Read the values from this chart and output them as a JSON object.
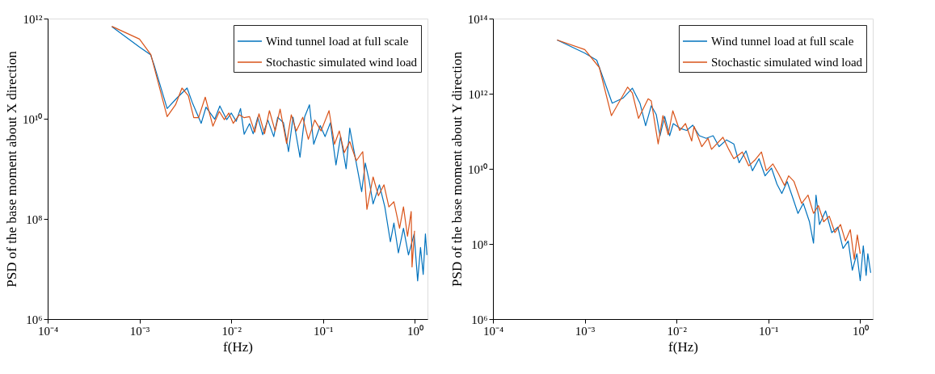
{
  "chart_data": [
    {
      "type": "line",
      "xlabel": "f(Hz)",
      "ylabel": "PSD of the base moment about X direction",
      "log": "xy",
      "legend": "top right",
      "xlim": [
        0.0001,
        1.37
      ],
      "ylim": [
        1000000.0,
        1000000000000.0
      ],
      "xticks": [
        {
          "value": 0.0001,
          "label": "10⁻⁴"
        },
        {
          "value": 0.001,
          "label": "10⁻³"
        },
        {
          "value": 0.01,
          "label": "10⁻²"
        },
        {
          "value": 0.1,
          "label": "10⁻¹"
        },
        {
          "value": 1,
          "label": "10⁰"
        }
      ],
      "yticks": [
        {
          "value": 1000000.0,
          "label": "10⁶"
        },
        {
          "value": 100000000.0,
          "label": "10⁸"
        },
        {
          "value": 10000000000.0,
          "label": "10¹⁰"
        },
        {
          "value": 1000000000000.0,
          "label": "10¹²"
        }
      ],
      "series": [
        {
          "name": "Wind tunnel load at full scale",
          "color": "#0072bd",
          "x": [
            0.0005,
            0.001,
            0.00132,
            0.00144,
            0.002,
            0.00256,
            0.0033,
            0.0038,
            0.0047,
            0.0053,
            0.0066,
            0.0075,
            0.0089,
            0.01,
            0.0113,
            0.0126,
            0.0138,
            0.0158,
            0.0173,
            0.0194,
            0.022,
            0.025,
            0.029,
            0.032,
            0.037,
            0.042,
            0.047,
            0.056,
            0.063,
            0.071,
            0.079,
            0.093,
            0.105,
            0.12,
            0.138,
            0.155,
            0.178,
            0.195,
            0.224,
            0.263,
            0.288,
            0.316,
            0.35,
            0.41,
            0.47,
            0.54,
            0.59,
            0.66,
            0.75,
            0.85,
            0.98,
            1.07,
            1.15,
            1.23,
            1.3,
            1.35
          ],
          "values": [
            690000000000.0,
            270000000000.0,
            190000000000.0,
            120000000000.0,
            16000000000.0,
            26000000000.0,
            41000000000.0,
            20000000000.0,
            8100000000.0,
            17000000000.0,
            9800000000.0,
            18000000000.0,
            9600000000.0,
            13000000000.0,
            8900000000.0,
            16000000000.0,
            4900000000.0,
            8000000000.0,
            5000000000.0,
            10700000000.0,
            4800000000.0,
            9400000000.0,
            4400000000.0,
            10700000000.0,
            8300000000.0,
            2200000000.0,
            10700000000.0,
            1700000000.0,
            11000000000.0,
            19000000000.0,
            3100000000.0,
            7300000000.0,
            4400000000.0,
            8300000000.0,
            1200000000.0,
            4400000000.0,
            1000000000.0,
            6500000000.0,
            1660000000.0,
            350000000.0,
            1300000000.0,
            600000000.0,
            200000000.0,
            480000000.0,
            174000000.0,
            35000000.0,
            83000000.0,
            21000000.0,
            65000000.0,
            19000000.0,
            50000000.0,
            5800000.0,
            27000000.0,
            7800000.0,
            50000000.0,
            19000000.0
          ]
        },
        {
          "name": "Stochastic simulated wind load",
          "color": "#d95319",
          "x": [
            0.0005,
            0.001,
            0.00133,
            0.002,
            0.00247,
            0.0029,
            0.0034,
            0.0039,
            0.0044,
            0.0052,
            0.0063,
            0.0074,
            0.0084,
            0.0094,
            0.0105,
            0.0122,
            0.0138,
            0.0158,
            0.018,
            0.02,
            0.023,
            0.026,
            0.03,
            0.034,
            0.04,
            0.045,
            0.051,
            0.06,
            0.069,
            0.081,
            0.095,
            0.116,
            0.133,
            0.15,
            0.17,
            0.195,
            0.23,
            0.27,
            0.3,
            0.35,
            0.4,
            0.46,
            0.52,
            0.59,
            0.68,
            0.75,
            0.83,
            0.91,
            0.93,
            0.99
          ],
          "values": [
            700000000000.0,
            390000000000.0,
            190000000000.0,
            11000000000.0,
            19000000000.0,
            41000000000.0,
            29000000000.0,
            10500000000.0,
            10500000000.0,
            27000000000.0,
            7100000000.0,
            14000000000.0,
            9600000000.0,
            13000000000.0,
            8100000000.0,
            12000000000.0,
            10500000000.0,
            11000000000.0,
            5400000000.0,
            12600000000.0,
            5000000000.0,
            14500000000.0,
            5700000000.0,
            15500000000.0,
            3200000000.0,
            12000000000.0,
            5700000000.0,
            10700000000.0,
            3900000000.0,
            9400000000.0,
            5700000000.0,
            14500000000.0,
            3100000000.0,
            5700000000.0,
            2100000000.0,
            3500000000.0,
            1450000000.0,
            2200000000.0,
            155000000.0,
            690000000.0,
            290000000.0,
            480000000.0,
            174000000.0,
            220000000.0,
            65000000.0,
            174000000.0,
            45000000.0,
            140000000.0,
            11000000.0,
            58000000.0
          ]
        }
      ]
    },
    {
      "type": "line",
      "xlabel": "f(Hz)",
      "ylabel": "PSD of the base moment about Y direction",
      "log": "xy",
      "legend": "top right",
      "xlim": [
        0.0001,
        1.37
      ],
      "ylim": [
        1000000.0,
        100000000000000.0
      ],
      "xticks": [
        {
          "value": 0.0001,
          "label": "10⁻⁴"
        },
        {
          "value": 0.001,
          "label": "10⁻³"
        },
        {
          "value": 0.01,
          "label": "10⁻²"
        },
        {
          "value": 0.1,
          "label": "10⁻¹"
        },
        {
          "value": 1,
          "label": "10⁰"
        }
      ],
      "yticks": [
        {
          "value": 1000000.0,
          "label": "10⁶"
        },
        {
          "value": 100000000.0,
          "label": "10⁸"
        },
        {
          "value": 10000000000.0,
          "label": "10¹⁰"
        },
        {
          "value": 1000000000000.0,
          "label": "10¹²"
        },
        {
          "value": 100000000000000.0,
          "label": "10¹⁴"
        }
      ],
      "series": [
        {
          "name": "Wind tunnel load at full scale",
          "color": "#0072bd",
          "x": [
            0.0005,
            0.001,
            0.00135,
            0.00146,
            0.00199,
            0.0026,
            0.0033,
            0.004,
            0.0046,
            0.0053,
            0.006,
            0.0066,
            0.0074,
            0.0084,
            0.0092,
            0.0109,
            0.0129,
            0.015,
            0.0177,
            0.021,
            0.025,
            0.029,
            0.035,
            0.042,
            0.048,
            0.057,
            0.067,
            0.079,
            0.092,
            0.108,
            0.124,
            0.14,
            0.16,
            0.18,
            0.21,
            0.24,
            0.28,
            0.31,
            0.33,
            0.36,
            0.42,
            0.49,
            0.57,
            0.65,
            0.74,
            0.82,
            0.92,
            1.0,
            1.08,
            1.16,
            1.21,
            1.3
          ],
          "values": [
            27000000000000.0,
            12000000000000.0,
            7800000000000.0,
            4600000000000.0,
            560000000000.0,
            760000000000.0,
            1400000000000.0,
            550000000000.0,
            140000000000.0,
            480000000000.0,
            280000000000.0,
            76000000000.0,
            250000000000.0,
            76000000000.0,
            160000000000.0,
            120000000000.0,
            105000000000.0,
            145000000000.0,
            76000000000.0,
            65000000000.0,
            76000000000.0,
            39000000000.0,
            59000000000.0,
            46000000000.0,
            14500000000.0,
            30000000000.0,
            8900000000.0,
            18600000000.0,
            6500000000.0,
            10500000000.0,
            3900000000.0,
            2200000000.0,
            4600000000.0,
            2000000000.0,
            650000000.0,
            1200000000.0,
            390000000.0,
            105000000.0,
            2000000000.0,
            330000000.0,
            760000000.0,
            200000000.0,
            280000000.0,
            76000000.0,
            120000000.0,
            20000000.0,
            55000000.0,
            10500000.0,
            89000000.0,
            14500000.0,
            55000000.0,
            17000000.0
          ]
        },
        {
          "name": "Stochastic simulated wind load",
          "color": "#d95319",
          "x": [
            0.0005,
            0.001,
            0.00144,
            0.00195,
            0.00293,
            0.0033,
            0.00385,
            0.0049,
            0.0053,
            0.0063,
            0.0071,
            0.0081,
            0.0091,
            0.0108,
            0.0125,
            0.0146,
            0.0155,
            0.0188,
            0.022,
            0.024,
            0.032,
            0.037,
            0.042,
            0.052,
            0.061,
            0.071,
            0.084,
            0.095,
            0.112,
            0.128,
            0.15,
            0.166,
            0.19,
            0.23,
            0.27,
            0.31,
            0.35,
            0.4,
            0.46,
            0.53,
            0.61,
            0.69,
            0.78,
            0.86,
            0.93,
            1.0
          ],
          "values": [
            27000000000000.0,
            15000000000000.0,
            5000000000000.0,
            260000000000.0,
            1500000000000.0,
            1050000000000.0,
            220000000000.0,
            730000000000.0,
            640000000000.0,
            46000000000.0,
            260000000000.0,
            81000000000.0,
            350000000000.0,
            105000000000.0,
            160000000000.0,
            55000000000.0,
            135000000000.0,
            39000000000.0,
            65000000000.0,
            33000000000.0,
            69000000000.0,
            33000000000.0,
            18600000000.0,
            28000000000.0,
            12000000000.0,
            17000000000.0,
            28000000000.0,
            8900000000.0,
            13500000000.0,
            7600000000.0,
            3600000000.0,
            6500000000.0,
            4600000000.0,
            1200000000.0,
            2000000000.0,
            650000000.0,
            1050000000.0,
            390000000.0,
            550000000.0,
            200000000.0,
            330000000.0,
            120000000.0,
            240000000.0,
            39000000.0,
            174000000.0,
            55000000.0
          ]
        }
      ]
    }
  ]
}
